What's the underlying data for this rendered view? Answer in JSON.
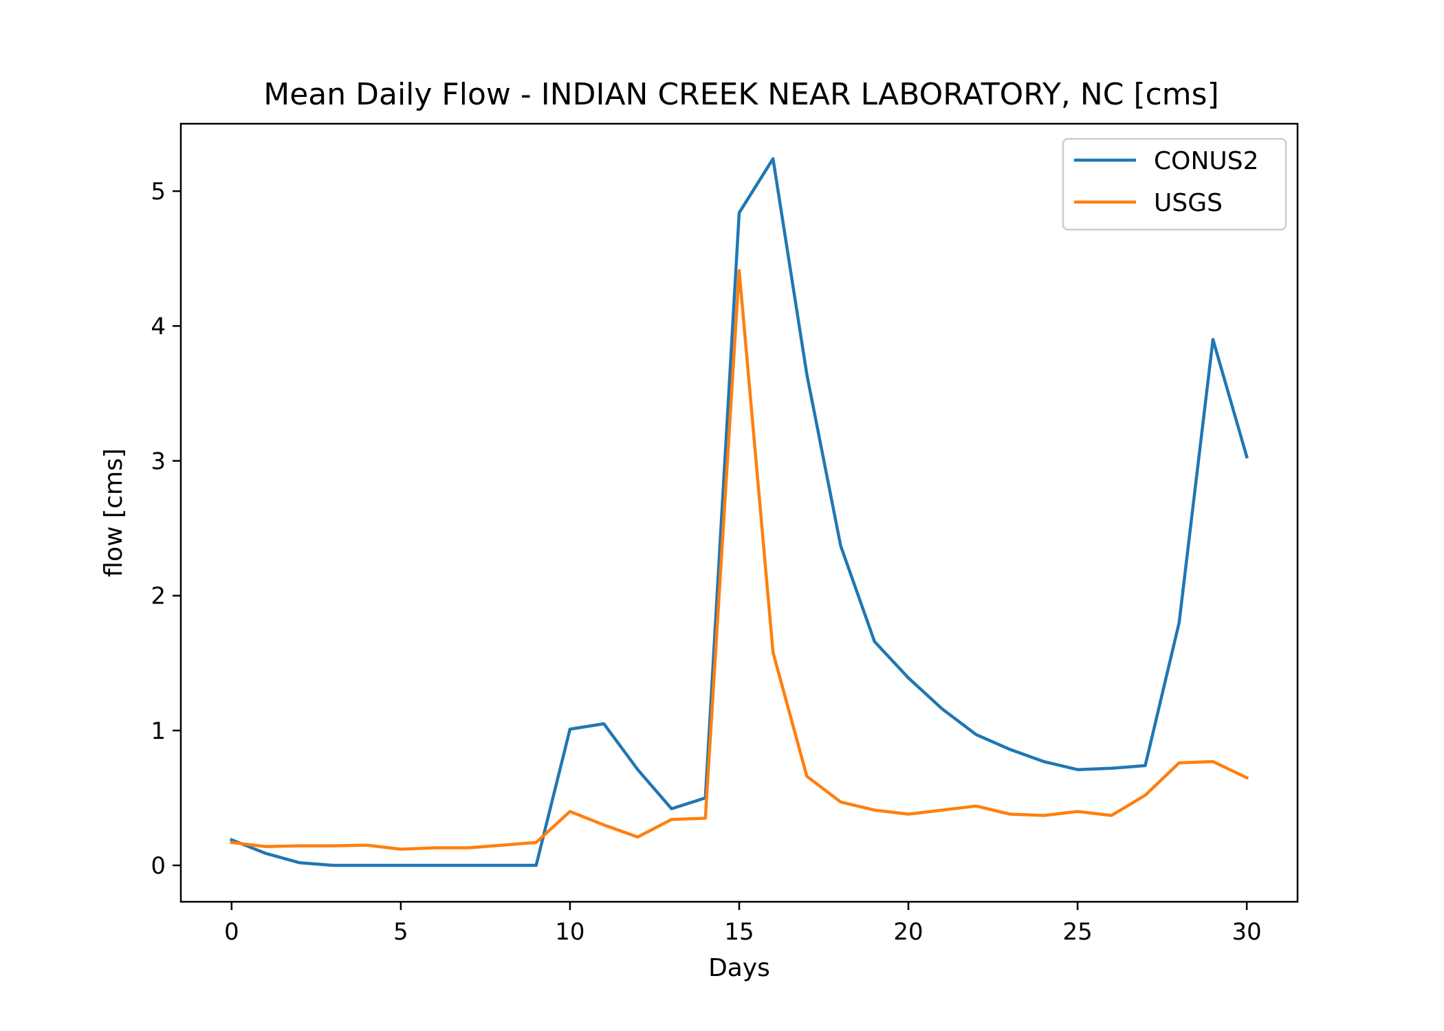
{
  "chart_data": {
    "type": "line",
    "title": "Mean Daily Flow - INDIAN CREEK NEAR LABORATORY, NC [cms]",
    "xlabel": "Days",
    "ylabel": "flow [cms]",
    "xlim": [
      -1.5,
      31.5
    ],
    "ylim": [
      -0.27,
      5.5
    ],
    "xticks": [
      0,
      5,
      10,
      15,
      20,
      25,
      30
    ],
    "yticks": [
      0,
      1,
      2,
      3,
      4,
      5
    ],
    "grid": false,
    "legend": "top-right",
    "x": [
      0,
      1,
      2,
      3,
      4,
      5,
      6,
      7,
      8,
      9,
      10,
      11,
      12,
      13,
      14,
      15,
      16,
      17,
      18,
      19,
      20,
      21,
      22,
      23,
      24,
      25,
      26,
      27,
      28,
      29,
      30
    ],
    "series": [
      {
        "name": "CONUS2",
        "color": "#1f77b4",
        "values": [
          0.19,
          0.09,
          0.02,
          0.0,
          0.0,
          0.0,
          0.0,
          0.0,
          0.0,
          0.0,
          1.01,
          1.05,
          0.71,
          0.42,
          0.5,
          4.84,
          5.24,
          3.64,
          2.37,
          1.66,
          1.39,
          1.16,
          0.97,
          0.86,
          0.77,
          0.71,
          0.72,
          0.74,
          1.8,
          3.9,
          3.03
        ]
      },
      {
        "name": "USGS",
        "color": "#ff7f0e",
        "values": [
          0.17,
          0.14,
          0.145,
          0.145,
          0.15,
          0.12,
          0.13,
          0.13,
          0.15,
          0.17,
          0.4,
          0.3,
          0.21,
          0.34,
          0.35,
          4.41,
          1.58,
          0.66,
          0.47,
          0.41,
          0.38,
          0.41,
          0.44,
          0.38,
          0.37,
          0.4,
          0.37,
          0.52,
          0.76,
          0.77,
          0.65
        ]
      }
    ]
  }
}
